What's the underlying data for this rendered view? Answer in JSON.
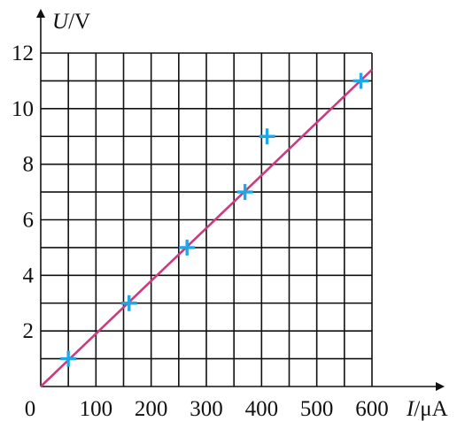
{
  "chart_data": {
    "type": "scatter",
    "xlabel_var": "I",
    "xlabel_unit": "/μA",
    "ylabel_var": "U",
    "ylabel_unit": "/V",
    "origin_label": "0",
    "xlim": [
      0,
      600
    ],
    "ylim": [
      0,
      12
    ],
    "grid": true,
    "x_ticks": [
      100,
      200,
      300,
      400,
      500,
      600
    ],
    "y_ticks": [
      2,
      4,
      6,
      8,
      10,
      12
    ],
    "points": [
      {
        "x": 50,
        "y": 1
      },
      {
        "x": 160,
        "y": 3
      },
      {
        "x": 265,
        "y": 5
      },
      {
        "x": 370,
        "y": 7
      },
      {
        "x": 410,
        "y": 9
      },
      {
        "x": 580,
        "y": 11
      }
    ],
    "fit_line": {
      "x": [
        0,
        600
      ],
      "y": [
        0,
        11.4
      ]
    },
    "colors": {
      "points": "#1ea8e6",
      "fit_line": "#cc3a7f",
      "grid": "#111111"
    }
  }
}
